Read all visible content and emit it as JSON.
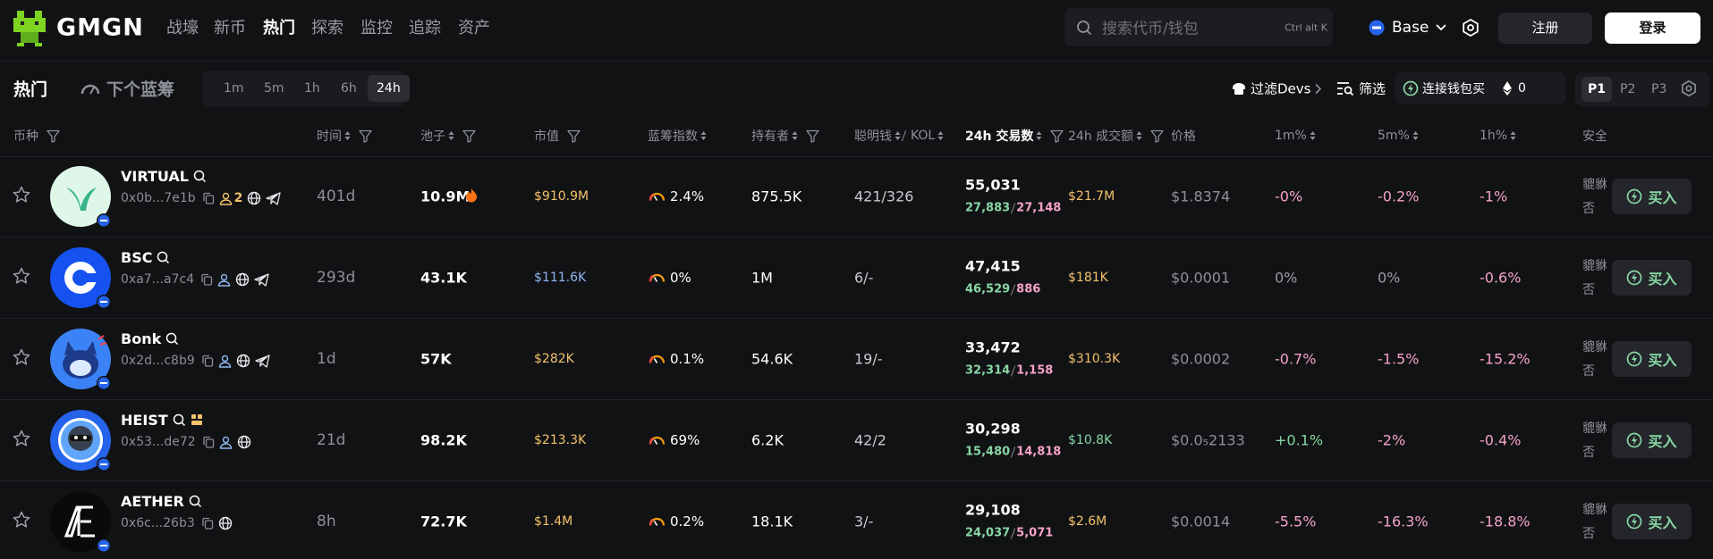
{
  "nav": {
    "logo": "GMGN",
    "items": [
      "战壕",
      "新币",
      "热门",
      "探索",
      "监控",
      "追踪",
      "资产"
    ],
    "search_placeholder": "搜索代币/钱包",
    "search_shortcut": "Ctrl alt K",
    "chain": "Base",
    "register": "注册",
    "login": "登录"
  },
  "toolbar": {
    "title": "热门",
    "next_bluechip": "下个蓝筹",
    "timeframes": [
      "1m",
      "5m",
      "1h",
      "6h",
      "24h"
    ],
    "filter_devs": "过滤Devs",
    "filter": "筛选",
    "connect_wallet": "连接钱包买",
    "wallet_amount": "0",
    "pages": [
      "P1",
      "P2",
      "P3"
    ]
  },
  "table": {
    "columns": [
      "币种",
      "时间",
      "池子",
      "市值",
      "蓝筹指数",
      "持有者",
      "聪明钱",
      "KOL",
      "24h 交易数",
      "24h 成交额",
      "价格",
      "1m%",
      "5m%",
      "1h%",
      "安全"
    ],
    "rows": [
      {
        "name": "VIRTUAL",
        "address": "0x0b...7e1b",
        "holder_tag": "2",
        "time": "401d",
        "liquidity": "10.9M",
        "market_cap": "$910.9M",
        "bluechip": "2.4%",
        "holders": "875.5K",
        "smart_kol": "421/326",
        "txns": "55,031",
        "buys": "27,883",
        "sells": "27,148",
        "volume": "$21.7M",
        "price": "$1.8374",
        "change_1m": "-0%",
        "change_5m": "-0.2%",
        "change_1h": "-1%",
        "safety": "貔貅",
        "safety_value": "否",
        "buy": "买入"
      },
      {
        "name": "BSC",
        "address": "0xa7...a7c4",
        "time": "293d",
        "liquidity": "43.1K",
        "market_cap": "$111.6K",
        "bluechip": "0%",
        "holders": "1M",
        "smart_kol": "6/-",
        "txns": "47,415",
        "buys": "46,529",
        "sells": "886",
        "volume": "$181K",
        "price": "$0.0001",
        "change_1m": "0%",
        "change_5m": "0%",
        "change_1h": "-0.6%",
        "safety": "貔貅",
        "safety_value": "否",
        "buy": "买入"
      },
      {
        "name": "Bonk",
        "address": "0x2d...c8b9",
        "time": "1d",
        "liquidity": "57K",
        "market_cap": "$282K",
        "bluechip": "0.1%",
        "holders": "54.6K",
        "smart_kol": "19/-",
        "txns": "33,472",
        "buys": "32,314",
        "sells": "1,158",
        "volume": "$310.3K",
        "price": "$0.0002",
        "change_1m": "-0.7%",
        "change_5m": "-1.5%",
        "change_1h": "-15.2%",
        "safety": "貔貅",
        "safety_value": "否",
        "buy": "买入"
      },
      {
        "name": "HEIST",
        "address": "0x53...de72",
        "time": "21d",
        "liquidity": "98.2K",
        "market_cap": "$213.3K",
        "bluechip": "69%",
        "holders": "6.2K",
        "smart_kol": "42/2",
        "txns": "30,298",
        "buys": "15,480",
        "sells": "14,818",
        "volume": "$10.8K",
        "price": "$0.0₅2133",
        "change_1m": "+0.1%",
        "change_5m": "-2%",
        "change_1h": "-0.4%",
        "safety": "貔貅",
        "safety_value": "否",
        "buy": "买入"
      },
      {
        "name": "AETHER",
        "address": "0x6c...26b3",
        "time": "8h",
        "liquidity": "72.7K",
        "market_cap": "$1.4M",
        "bluechip": "0.2%",
        "holders": "18.1K",
        "smart_kol": "3/-",
        "txns": "29,108",
        "buys": "24,037",
        "sells": "5,071",
        "volume": "$2.6M",
        "price": "$0.0014",
        "change_1m": "-5.5%",
        "change_5m": "-16.3%",
        "change_1h": "-18.8%",
        "safety": "貔貅",
        "safety_value": "否",
        "buy": "买入"
      }
    ]
  }
}
